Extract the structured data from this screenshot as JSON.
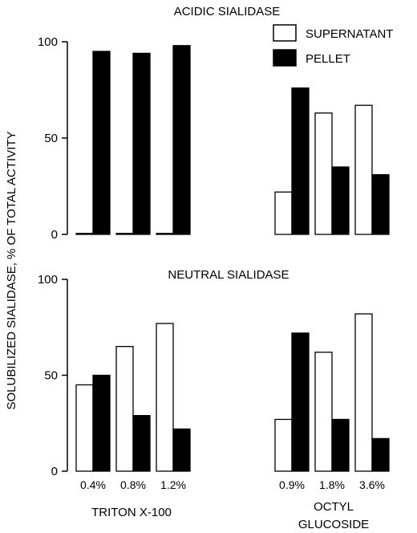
{
  "figure": {
    "ylabel": "SOLUBILIZED SIALIDASE, % OF TOTAL ACTIVITY",
    "legend": [
      {
        "name": "SUPERNATANT",
        "color": "#ffffff"
      },
      {
        "name": "PELLET",
        "color": "#000000"
      }
    ],
    "group_labels": {
      "triton": "TRITON X-100",
      "octyl_line1": "OCTYL",
      "octyl_line2": "GLUCOSIDE"
    }
  },
  "chart_data": [
    {
      "type": "bar",
      "title": "ACIDIC SIALIDASE",
      "ylabel": "SOLUBILIZED SIALIDASE, % OF TOTAL ACTIVITY",
      "ylim": [
        0,
        100
      ],
      "yticks": [
        0,
        50,
        100
      ],
      "grid": false,
      "legend_position": "top-right",
      "groups": [
        {
          "name": "",
          "categories": [
            "",
            "",
            ""
          ],
          "series": [
            {
              "name": "SUPERNATANT",
              "values": [
                0.5,
                0.5,
                0.5
              ]
            },
            {
              "name": "PELLET",
              "values": [
                95,
                94,
                98
              ]
            }
          ]
        },
        {
          "name": "",
          "categories": [
            "",
            "",
            ""
          ],
          "series": [
            {
              "name": "SUPERNATANT",
              "values": [
                22,
                63,
                67
              ]
            },
            {
              "name": "PELLET",
              "values": [
                76,
                35,
                31
              ]
            }
          ]
        }
      ]
    },
    {
      "type": "bar",
      "title": "NEUTRAL SIALIDASE",
      "ylabel": "SOLUBILIZED SIALIDASE, % OF TOTAL ACTIVITY",
      "ylim": [
        0,
        100
      ],
      "yticks": [
        0,
        50,
        100
      ],
      "grid": false,
      "groups": [
        {
          "name": "TRITON X-100",
          "categories": [
            "0.4%",
            "0.8%",
            "1.2%"
          ],
          "series": [
            {
              "name": "SUPERNATANT",
              "values": [
                45,
                65,
                77
              ]
            },
            {
              "name": "PELLET",
              "values": [
                50,
                29,
                22
              ]
            }
          ]
        },
        {
          "name": "OCTYL GLUCOSIDE",
          "categories": [
            "0.9%",
            "1.8%",
            "3.6%"
          ],
          "series": [
            {
              "name": "SUPERNATANT",
              "values": [
                27,
                62,
                82
              ]
            },
            {
              "name": "PELLET",
              "values": [
                72,
                27,
                17
              ]
            }
          ]
        }
      ]
    }
  ]
}
